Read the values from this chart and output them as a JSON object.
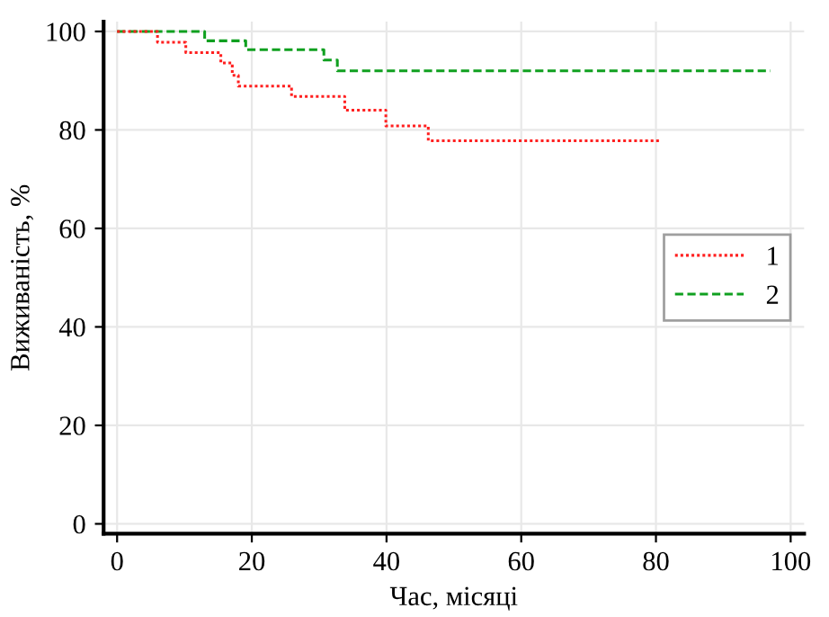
{
  "chart_data": {
    "type": "step",
    "xlabel": "Час, місяці",
    "ylabel": "Виживаність, %",
    "xlim": [
      -2,
      102
    ],
    "ylim": [
      -2,
      102
    ],
    "xticks": [
      0,
      20,
      40,
      60,
      80,
      100
    ],
    "yticks": [
      0,
      20,
      40,
      60,
      80,
      100
    ],
    "grid": true,
    "legend": "right",
    "series": [
      {
        "name": "1",
        "color": "#ff2020",
        "line_style": "dotted",
        "x": [
          0,
          6,
          10.2,
          15.4,
          17.1,
          18,
          25.9,
          33.8,
          39.9,
          46.2,
          80.7
        ],
        "values": [
          100,
          97.8,
          95.7,
          93.6,
          91.1,
          88.9,
          86.8,
          84,
          80.8,
          77.8,
          77.8
        ]
      },
      {
        "name": "2",
        "color": "#10a020",
        "line_style": "dashed",
        "x": [
          0,
          13,
          19.1,
          30.7,
          32.7,
          97
        ],
        "values": [
          100,
          98.1,
          96.3,
          94.2,
          92,
          92
        ]
      }
    ]
  }
}
